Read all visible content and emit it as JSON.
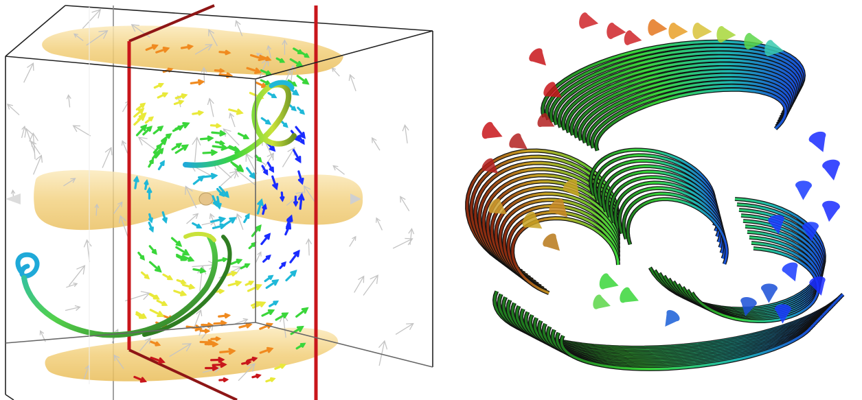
{
  "figure": {
    "panels": [
      {
        "id": "left",
        "kind": "3d-vector-field",
        "elements": [
          "bounding-box",
          "isosurfaces",
          "slice-plane",
          "vector-glyphs",
          "streamline-tubes"
        ]
      },
      {
        "id": "right",
        "kind": "3d-streamlines",
        "elements": [
          "streamline-ribbons",
          "cone-glyphs"
        ]
      }
    ],
    "colors": {
      "isosurface": "#f2cf7a",
      "slice_plane": "#b11a1a",
      "box_edge": "#222222",
      "glyph_gray": "#bdbdbd",
      "colormap": [
        "#1a2cff",
        "#1fb8d8",
        "#3ad63a",
        "#e9e93a",
        "#f08a1f",
        "#c8161b"
      ]
    }
  }
}
